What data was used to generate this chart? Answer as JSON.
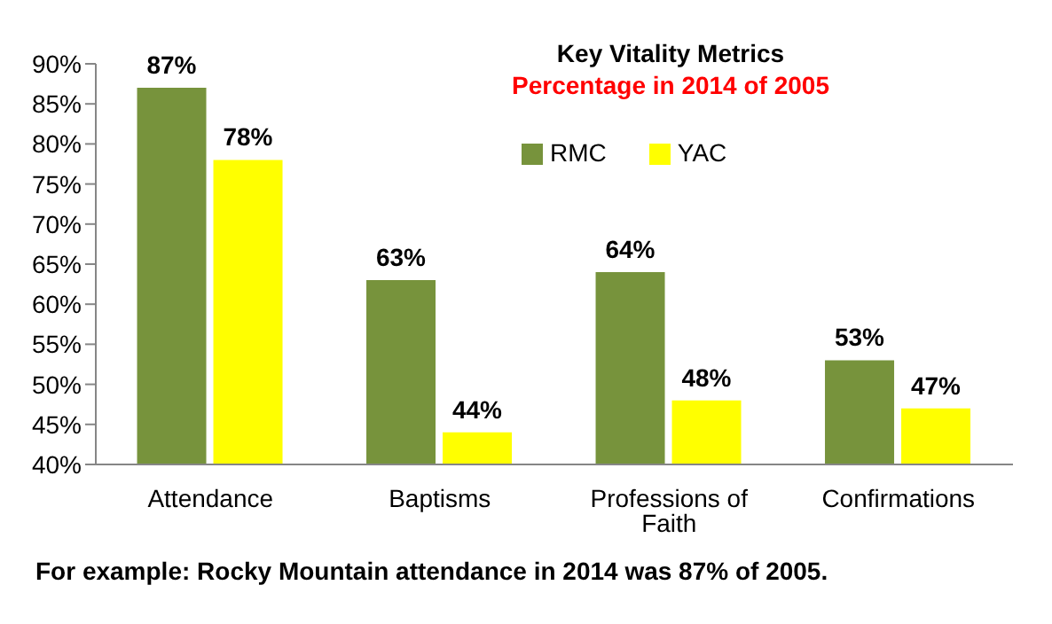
{
  "chart_data": {
    "type": "bar",
    "title": "Key Vitality  Metrics",
    "subtitle": "Percentage in 2014 of 2005",
    "categories": [
      "Attendance",
      "Baptisms",
      "Professions of Faith",
      "Confirmations"
    ],
    "series": [
      {
        "name": "RMC",
        "color": "#77933c",
        "values": [
          87,
          63,
          64,
          53
        ],
        "value_labels": [
          "87%",
          "63%",
          "64%",
          "53%"
        ]
      },
      {
        "name": "YAC",
        "color": "#ffff00",
        "values": [
          78,
          44,
          48,
          47
        ],
        "value_labels": [
          "78%",
          "44%",
          "48%",
          "47%"
        ]
      }
    ],
    "ylim": [
      40,
      90
    ],
    "yticks": [
      {
        "value": 40,
        "label": "40%"
      },
      {
        "value": 45,
        "label": "45%"
      },
      {
        "value": 50,
        "label": "50%"
      },
      {
        "value": 55,
        "label": "55%"
      },
      {
        "value": 60,
        "label": "60%"
      },
      {
        "value": 65,
        "label": "65%"
      },
      {
        "value": 70,
        "label": "70%"
      },
      {
        "value": 75,
        "label": "75%"
      },
      {
        "value": 80,
        "label": "80%"
      },
      {
        "value": 85,
        "label": "85%"
      },
      {
        "value": 90,
        "label": "90%"
      }
    ],
    "grid": false,
    "legend": "top",
    "annotations": [
      "For example:  Rocky Mountain attendance in 2014 was 87% of 2005."
    ]
  }
}
